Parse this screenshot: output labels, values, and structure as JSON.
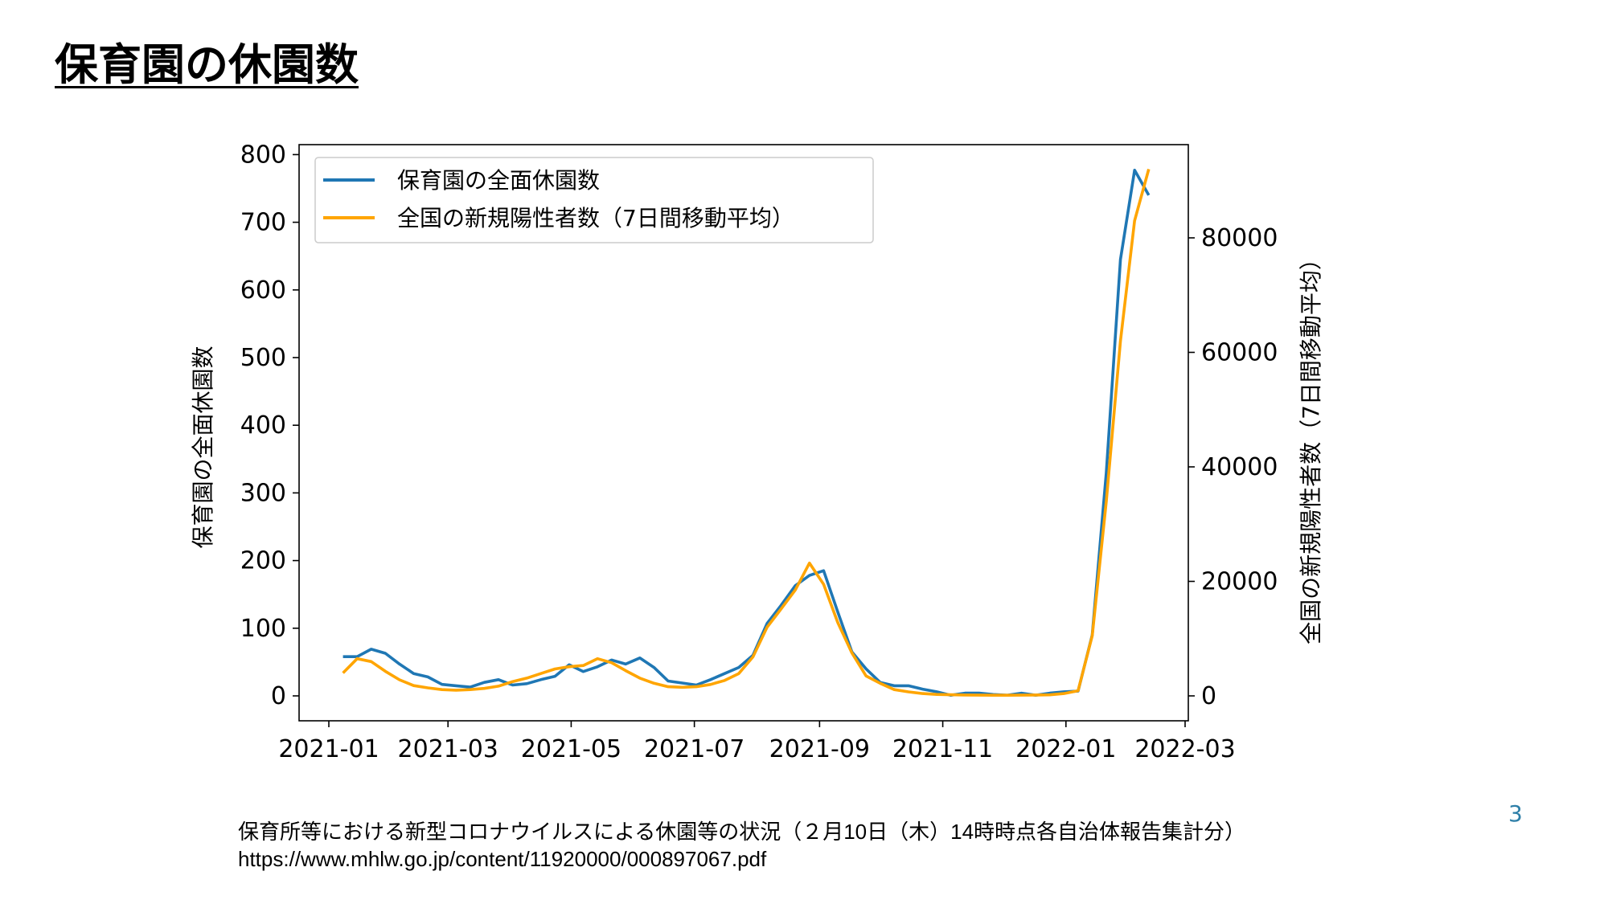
{
  "slide": {
    "title": "保育園の休園数",
    "page_number": "3"
  },
  "footer": {
    "source": "保育所等における新型コロナウイルスによる休園等の状況（２月10日（木）14時時点各自治体報告集計分）",
    "url": "https://www.mhlw.go.jp/content/11920000/000897067.pdf"
  },
  "colors": {
    "closures": "#1f77b4",
    "cases": "#ffa500"
  },
  "chart_data": {
    "type": "line",
    "x_tick_labels": [
      "2021-01",
      "2021-03",
      "2021-05",
      "2021-07",
      "2021-09",
      "2021-11",
      "2022-01",
      "2022-03"
    ],
    "y_left": {
      "label": "保育園の全面休園数",
      "ylim": [
        -38,
        800
      ],
      "ticks": [
        0,
        100,
        200,
        300,
        400,
        500,
        600,
        700,
        800
      ]
    },
    "y_right": {
      "label": "全国の新規陽性者数（7日間移動平均）",
      "ticks": [
        0,
        20000,
        40000,
        60000,
        80000
      ]
    },
    "legend": {
      "placement": "top-left"
    },
    "grid": false,
    "series": [
      {
        "name": "保育園の全面休園数",
        "axis": "left",
        "color": "#1f77b4",
        "points": [
          [
            "2021-01-08",
            58
          ],
          [
            "2021-01-15",
            58
          ],
          [
            "2021-01-22",
            69
          ],
          [
            "2021-01-29",
            63
          ],
          [
            "2021-02-05",
            47
          ],
          [
            "2021-02-12",
            33
          ],
          [
            "2021-02-19",
            28
          ],
          [
            "2021-02-26",
            17
          ],
          [
            "2021-03-05",
            15
          ],
          [
            "2021-03-12",
            13
          ],
          [
            "2021-03-19",
            20
          ],
          [
            "2021-03-26",
            24
          ],
          [
            "2021-04-02",
            16
          ],
          [
            "2021-04-09",
            18
          ],
          [
            "2021-04-16",
            24
          ],
          [
            "2021-04-23",
            29
          ],
          [
            "2021-04-30",
            46
          ],
          [
            "2021-05-07",
            36
          ],
          [
            "2021-05-14",
            43
          ],
          [
            "2021-05-21",
            53
          ],
          [
            "2021-05-28",
            47
          ],
          [
            "2021-06-04",
            56
          ],
          [
            "2021-06-11",
            42
          ],
          [
            "2021-06-18",
            22
          ],
          [
            "2021-06-25",
            19
          ],
          [
            "2021-07-02",
            16
          ],
          [
            "2021-07-09",
            24
          ],
          [
            "2021-07-16",
            33
          ],
          [
            "2021-07-23",
            42
          ],
          [
            "2021-07-30",
            60
          ],
          [
            "2021-08-06",
            107
          ],
          [
            "2021-08-13",
            134
          ],
          [
            "2021-08-20",
            163
          ],
          [
            "2021-08-27",
            178
          ],
          [
            "2021-09-03",
            185
          ],
          [
            "2021-09-10",
            124
          ],
          [
            "2021-09-17",
            65
          ],
          [
            "2021-09-24",
            40
          ],
          [
            "2021-10-01",
            20
          ],
          [
            "2021-10-08",
            15
          ],
          [
            "2021-10-15",
            15
          ],
          [
            "2021-10-22",
            10
          ],
          [
            "2021-10-29",
            6
          ],
          [
            "2021-11-05",
            1
          ],
          [
            "2021-11-12",
            4
          ],
          [
            "2021-11-19",
            4
          ],
          [
            "2021-11-26",
            2
          ],
          [
            "2021-12-03",
            1
          ],
          [
            "2021-12-10",
            4
          ],
          [
            "2021-12-17",
            1
          ],
          [
            "2021-12-24",
            4
          ],
          [
            "2021-12-31",
            6
          ],
          [
            "2022-01-07",
            7
          ],
          [
            "2022-01-14",
            90
          ],
          [
            "2022-01-21",
            330
          ],
          [
            "2022-01-28",
            645
          ],
          [
            "2022-02-04",
            777
          ],
          [
            "2022-02-11",
            740
          ]
        ]
      },
      {
        "name": "全国の新規陽性者数（7日間移動平均）",
        "axis": "right",
        "color": "#ffa500",
        "points": [
          [
            "2021-01-08",
            4000
          ],
          [
            "2021-01-15",
            6500
          ],
          [
            "2021-01-22",
            6000
          ],
          [
            "2021-01-29",
            4300
          ],
          [
            "2021-02-05",
            2800
          ],
          [
            "2021-02-12",
            1800
          ],
          [
            "2021-02-19",
            1400
          ],
          [
            "2021-02-26",
            1100
          ],
          [
            "2021-03-05",
            1000
          ],
          [
            "2021-03-12",
            1100
          ],
          [
            "2021-03-19",
            1300
          ],
          [
            "2021-03-26",
            1700
          ],
          [
            "2021-04-02",
            2500
          ],
          [
            "2021-04-09",
            3100
          ],
          [
            "2021-04-16",
            3900
          ],
          [
            "2021-04-23",
            4700
          ],
          [
            "2021-04-30",
            5100
          ],
          [
            "2021-05-07",
            5300
          ],
          [
            "2021-05-14",
            6500
          ],
          [
            "2021-05-21",
            5800
          ],
          [
            "2021-05-28",
            4400
          ],
          [
            "2021-06-04",
            3100
          ],
          [
            "2021-06-11",
            2200
          ],
          [
            "2021-06-18",
            1600
          ],
          [
            "2021-06-25",
            1500
          ],
          [
            "2021-07-02",
            1600
          ],
          [
            "2021-07-09",
            2000
          ],
          [
            "2021-07-16",
            2700
          ],
          [
            "2021-07-23",
            3900
          ],
          [
            "2021-07-30",
            6800
          ],
          [
            "2021-08-06",
            12000
          ],
          [
            "2021-08-13",
            15200
          ],
          [
            "2021-08-20",
            18500
          ],
          [
            "2021-08-27",
            23200
          ],
          [
            "2021-09-03",
            19500
          ],
          [
            "2021-09-10",
            12800
          ],
          [
            "2021-09-17",
            7500
          ],
          [
            "2021-09-24",
            3500
          ],
          [
            "2021-10-01",
            2200
          ],
          [
            "2021-10-08",
            1100
          ],
          [
            "2021-10-15",
            700
          ],
          [
            "2021-10-22",
            400
          ],
          [
            "2021-10-29",
            250
          ],
          [
            "2021-11-05",
            200
          ],
          [
            "2021-11-12",
            150
          ],
          [
            "2021-11-19",
            130
          ],
          [
            "2021-11-26",
            110
          ],
          [
            "2021-12-03",
            110
          ],
          [
            "2021-12-10",
            130
          ],
          [
            "2021-12-17",
            150
          ],
          [
            "2021-12-24",
            180
          ],
          [
            "2021-12-31",
            400
          ],
          [
            "2022-01-07",
            900
          ],
          [
            "2022-01-14",
            10500
          ],
          [
            "2022-01-21",
            34000
          ],
          [
            "2022-01-28",
            62000
          ],
          [
            "2022-02-04",
            83000
          ],
          [
            "2022-02-11",
            92000
          ]
        ]
      }
    ]
  }
}
